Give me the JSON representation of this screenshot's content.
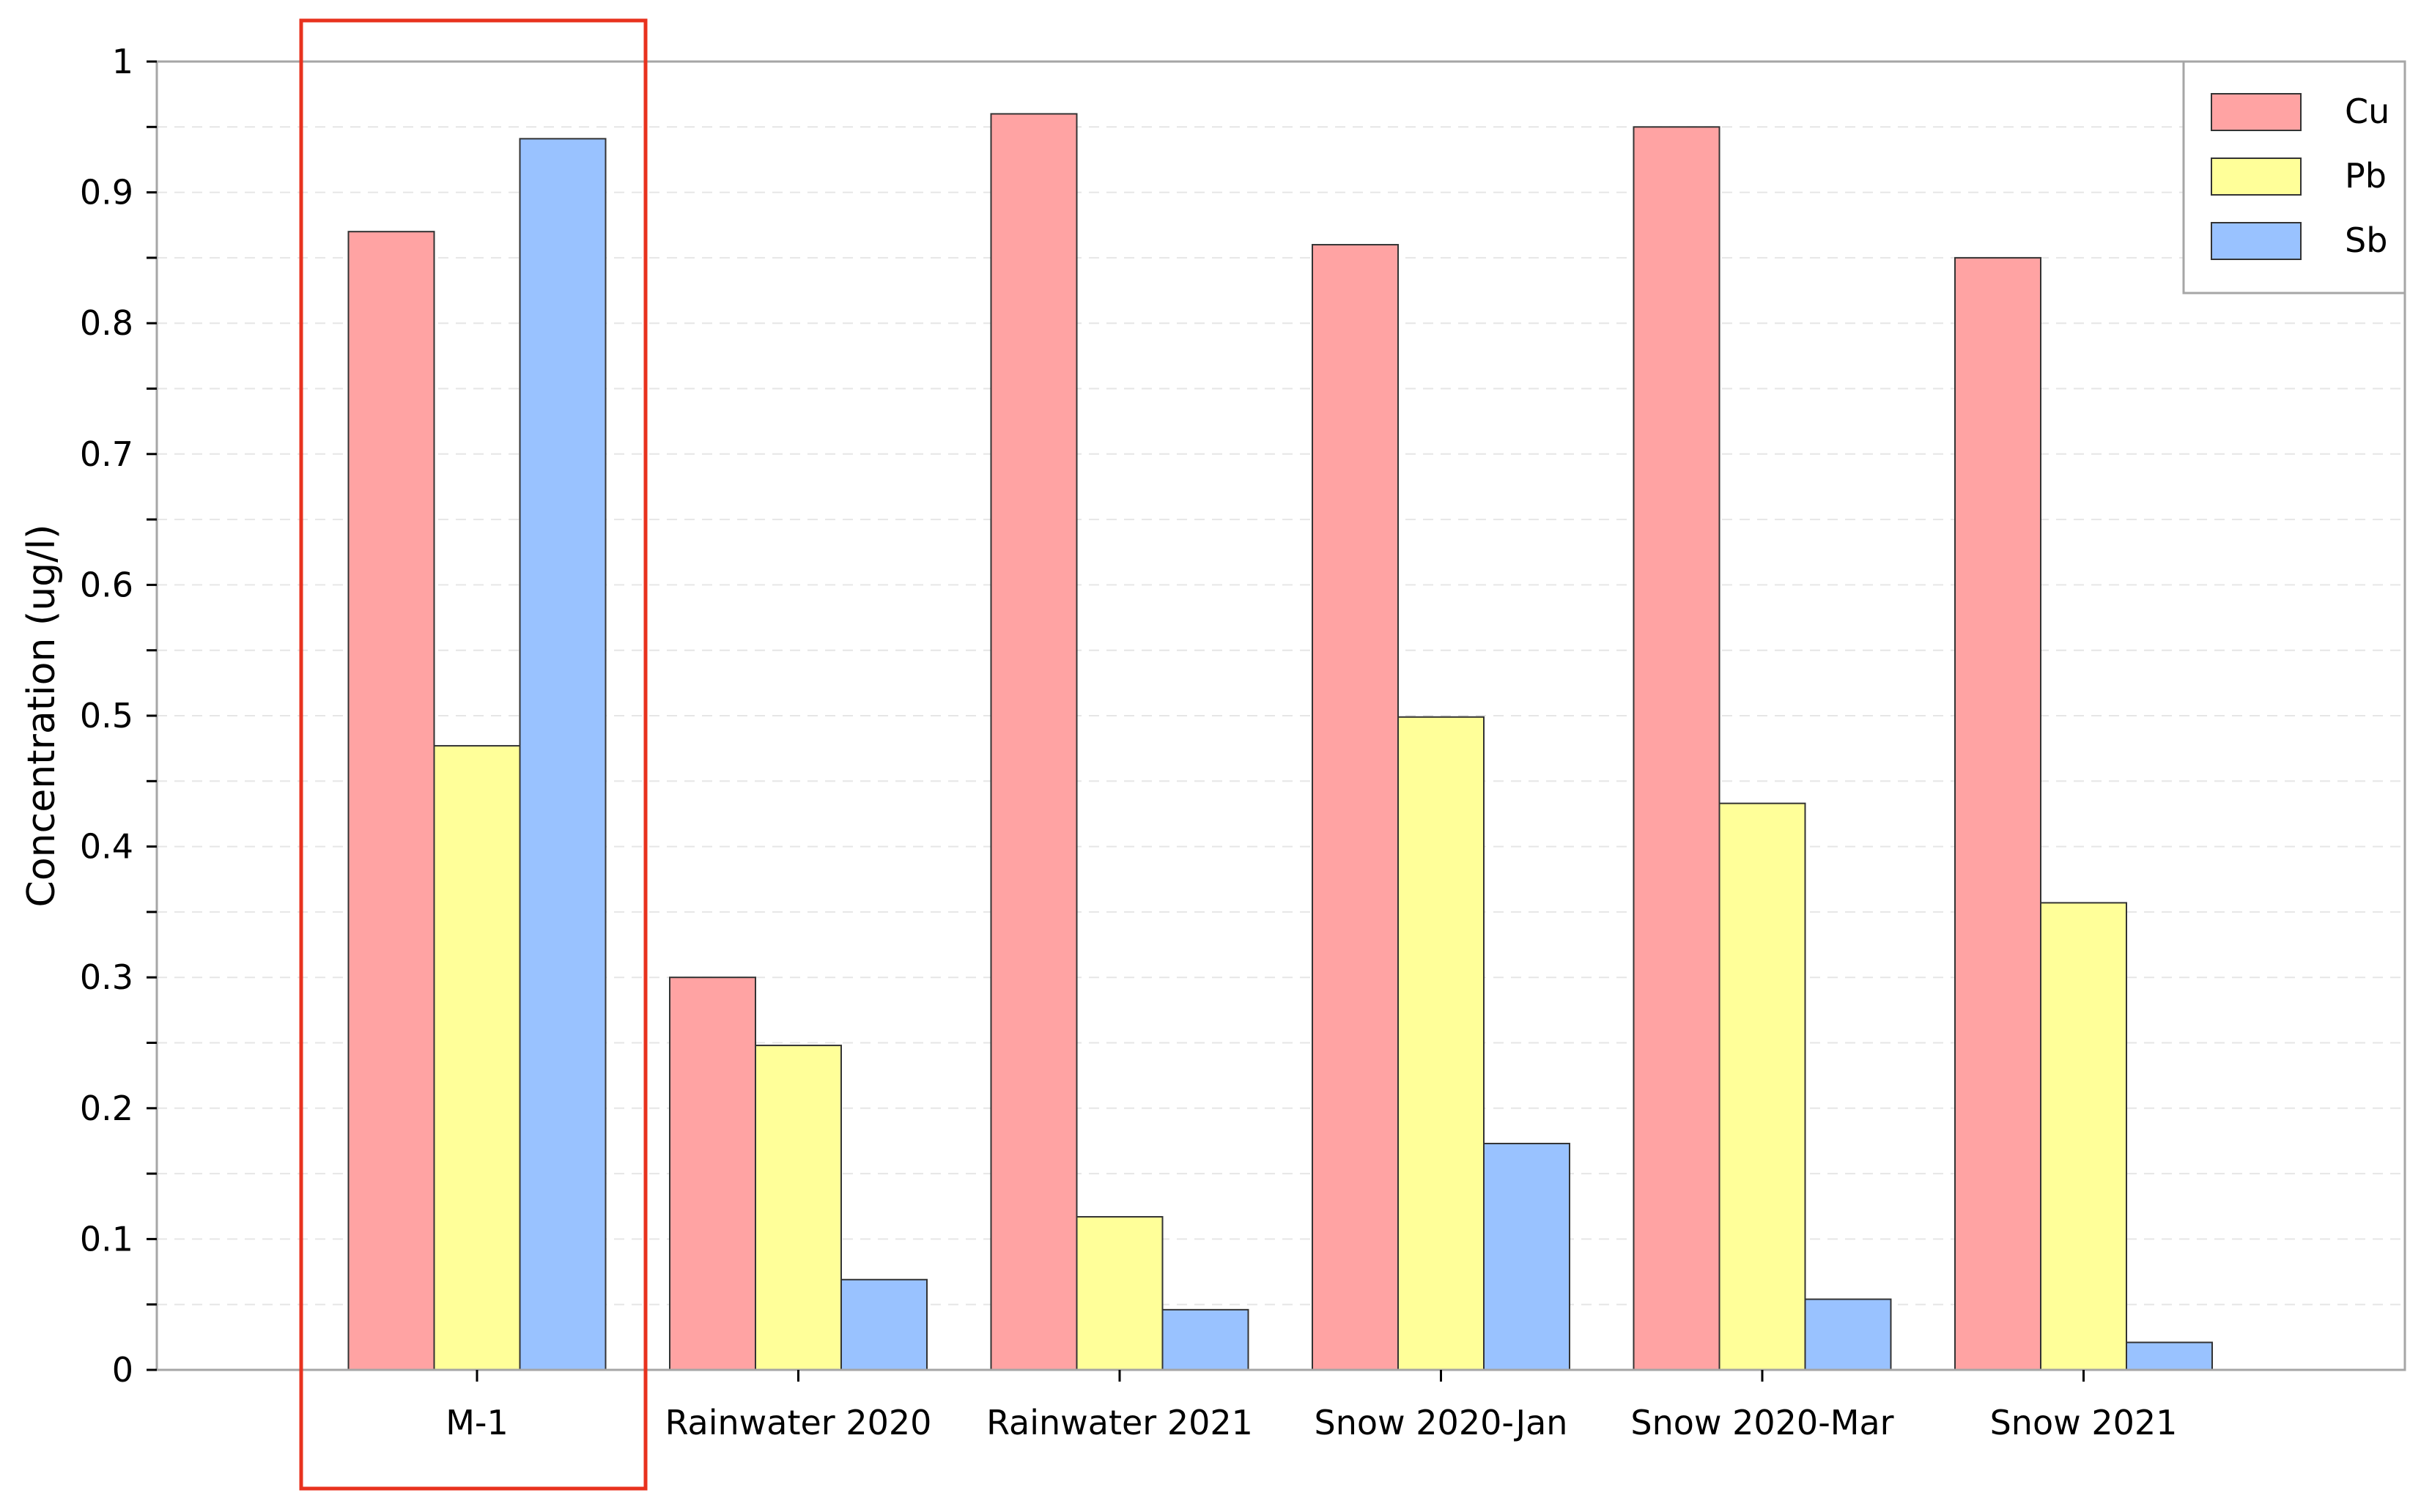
{
  "chart_data": {
    "type": "bar",
    "title": "",
    "xlabel": "",
    "ylabel": "Concentration (ug/l)",
    "ylim": [
      0,
      1
    ],
    "yticks": [
      "0",
      "0.1",
      "0.2",
      "0.3",
      "0.4",
      "0.5",
      "0.6",
      "0.7",
      "0.8",
      "0.9",
      "1"
    ],
    "categories": [
      "M-1",
      "Rainwater 2020",
      "Rainwater 2021",
      "Snow 2020-Jan",
      "Snow 2020-Mar",
      "Snow 2021"
    ],
    "series": [
      {
        "name": "Cu",
        "color": "#ffa3a3",
        "values": [
          0.87,
          0.3,
          0.96,
          0.86,
          0.95,
          0.85
        ]
      },
      {
        "name": "Pb",
        "color": "#ffff99",
        "values": [
          0.477,
          0.248,
          0.117,
          0.499,
          0.433,
          0.357
        ]
      },
      {
        "name": "Sb",
        "color": "#99c2ff",
        "values": [
          0.941,
          0.069,
          0.046,
          0.173,
          0.054,
          0.021
        ]
      }
    ],
    "legend_position": "top-right",
    "grid": "dashed horizontal",
    "highlight": {
      "category": "M-1",
      "color": "#e8321e"
    }
  }
}
